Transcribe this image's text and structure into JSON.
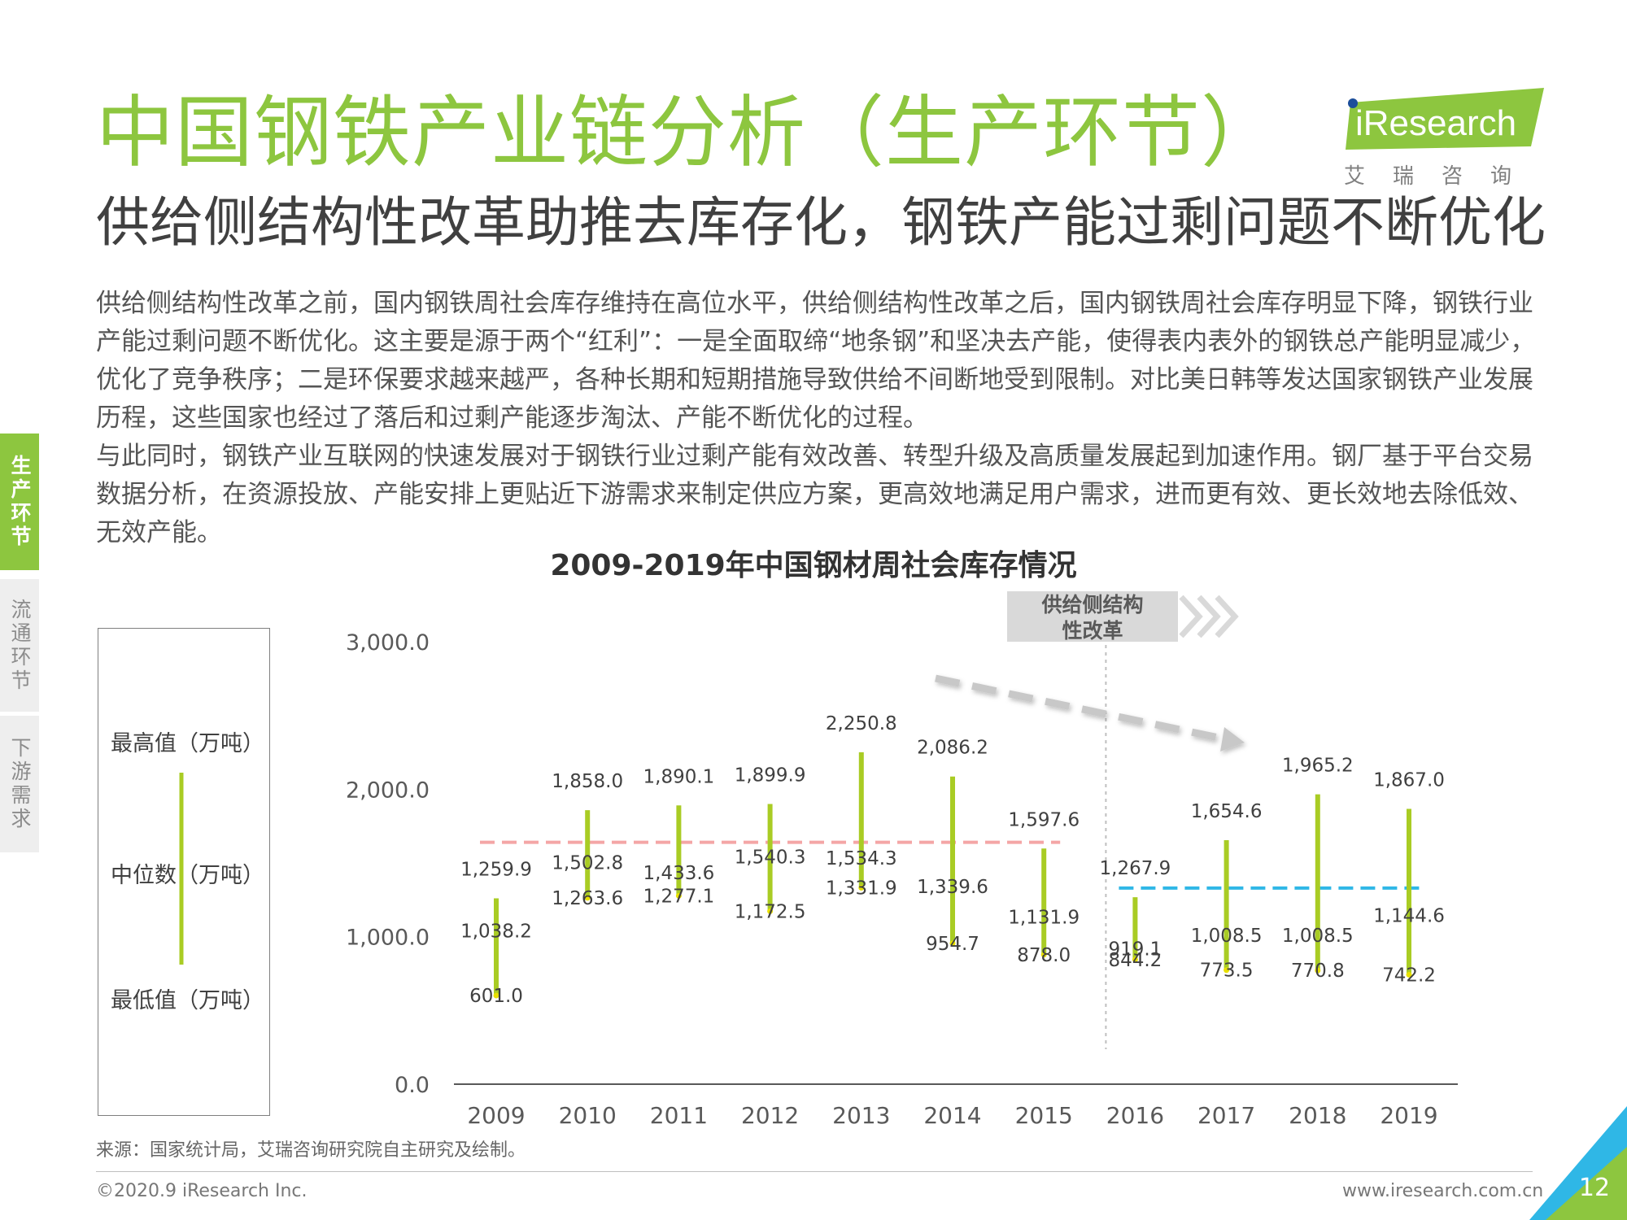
{
  "header": {
    "title": "中国钢铁产业链分析（生产环节）",
    "subtitle": "供给侧结构性改革助推去库存化，钢铁产能过剩问题不断优化"
  },
  "logo": {
    "text": "iResearch",
    "cn": "艾瑞咨询"
  },
  "body": {
    "paragraph1": "供给侧结构性改革之前，国内钢铁周社会库存维持在高位水平，供给侧结构性改革之后，国内钢铁周社会库存明显下降，钢铁行业产能过剩问题不断优化。这主要是源于两个“红利”：一是全面取缔“地条钢”和坚决去产能，使得表内表外的钢铁总产能明显减少，优化了竞争秩序；二是环保要求越来越严，各种长期和短期措施导致供给不间断地受到限制。对比美日韩等发达国家钢铁产业发展历程，这些国家也经过了落后和过剩产能逐步淘汰、产能不断优化的过程。",
    "paragraph2": "与此同时，钢铁产业互联网的快速发展对于钢铁行业过剩产能有效改善、转型升级及高质量发展起到加速作用。钢厂基于平台交易数据分析，在资源投放、产能安排上更贴近下游需求来制定供应方案，更高效地满足用户需求，进而更有效、更长效地去除低效、无效产能。"
  },
  "side_tabs": [
    "生产环节",
    "流通环节",
    "下游需求"
  ],
  "legend": {
    "max": "最高值（万吨）",
    "median": "中位数（万吨）",
    "min": "最低值（万吨）"
  },
  "annotation": {
    "line1": "供给侧结构",
    "line2": "性改革"
  },
  "chart_data": {
    "type": "range",
    "title": "2009-2019年中国钢材周社会库存情况",
    "categories": [
      "2009",
      "2010",
      "2011",
      "2012",
      "2013",
      "2014",
      "2015",
      "2016",
      "2017",
      "2018",
      "2019"
    ],
    "series": [
      {
        "name": "最高值（万吨）",
        "values": [
          1259.9,
          1858.0,
          1890.1,
          1899.9,
          2250.8,
          2086.2,
          1597.6,
          1267.9,
          1654.6,
          1965.2,
          1867.0
        ]
      },
      {
        "name": "中位数（万吨）",
        "values": [
          1038.2,
          1263.6,
          1277.1,
          1172.5,
          1331.9,
          954.7,
          878.0,
          919.1,
          1008.5,
          1008.5,
          1144.6
        ]
      },
      {
        "name": "最低值（万吨）",
        "values": [
          601.0,
          1502.8,
          1433.6,
          1540.3,
          1534.3,
          1339.6,
          1131.9,
          844.2,
          773.5,
          770.8,
          742.2
        ]
      }
    ],
    "value_labels": {
      "max": [
        "1,259.9",
        "1,858.0",
        "1,890.1",
        "1,899.9",
        "2,250.8",
        "2,086.2",
        "1,597.6",
        "1,267.9",
        "1,654.6",
        "1,965.2",
        "1,867.0"
      ],
      "median": [
        "1,038.2",
        "1,263.6",
        "1,277.1",
        "1,172.5",
        "1,331.9",
        "954.7",
        "878.0",
        "919.1",
        "1,008.5",
        "1,008.5",
        "1,144.6"
      ],
      "min": [
        "601.0",
        "1,502.8",
        "1,433.6",
        "1,540.3",
        "1,534.3",
        "1,339.6",
        "1,131.9",
        "844.2",
        "773.5",
        "770.8",
        "742.2"
      ]
    },
    "ylim": [
      0,
      3000
    ],
    "yticks": [
      "0.0",
      "1,000.0",
      "2,000.0",
      "3,000.0"
    ],
    "reference_lines": [
      {
        "value": 1640,
        "from": "2009",
        "to": "2015",
        "color": "#f4a6a6"
      },
      {
        "value": 1330,
        "from": "2016",
        "to": "2019",
        "color": "#2fb7e6"
      }
    ],
    "bar_color": "#a9cc24"
  },
  "source": "来源：国家统计局，艾瑞咨询研究院自主研究及绘制。",
  "footer": {
    "copyright": "©2020.9 iResearch Inc.",
    "website": "www.iresearch.com.cn",
    "page": "12"
  }
}
